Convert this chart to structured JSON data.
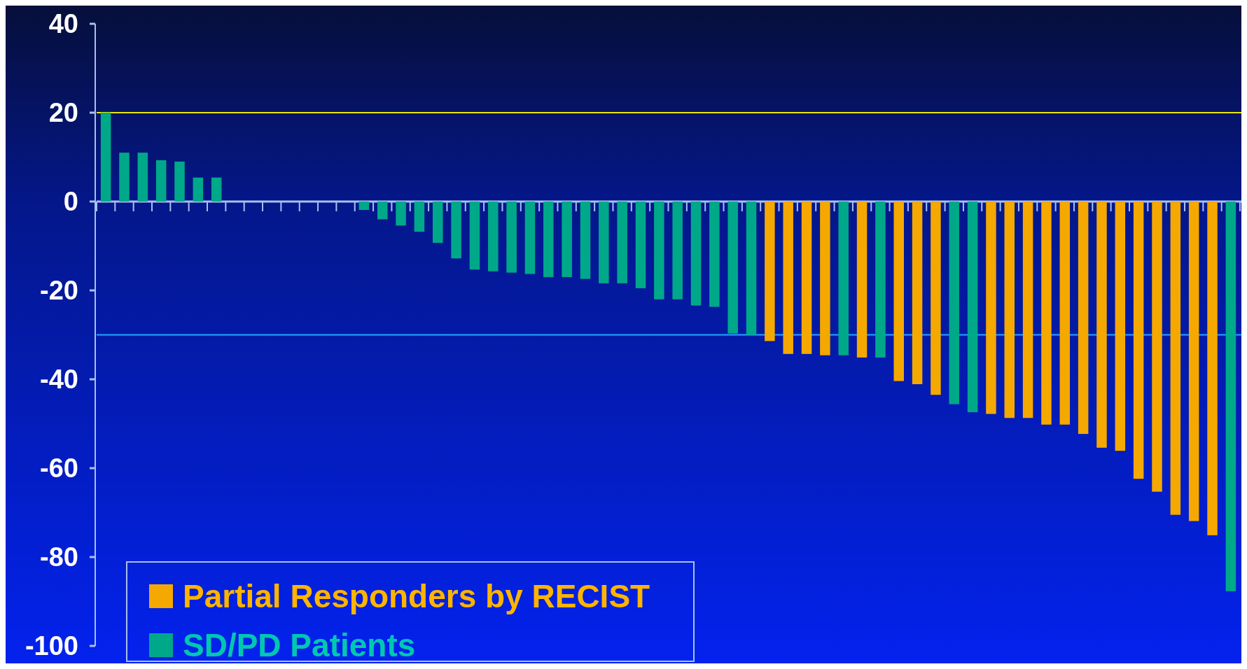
{
  "chart_data": {
    "type": "bar",
    "categories": [
      null,
      null,
      null,
      null,
      null,
      null,
      null,
      null,
      null,
      null,
      null,
      null,
      null,
      null,
      null,
      null,
      null,
      null,
      null,
      null,
      null,
      null,
      null,
      null,
      null,
      null,
      null,
      null,
      null,
      null,
      null,
      null,
      null,
      null,
      null,
      null,
      null,
      null,
      null,
      null,
      null,
      null,
      null,
      null,
      null,
      null,
      null,
      null,
      null,
      null,
      null,
      null,
      null,
      null,
      null,
      null,
      null,
      null,
      null,
      null,
      null,
      null
    ],
    "series": [
      {
        "name": "Partial Responders by RECIST",
        "color": "#f5a800",
        "values": [
          null,
          null,
          null,
          null,
          null,
          null,
          null,
          null,
          null,
          null,
          null,
          null,
          null,
          null,
          null,
          null,
          null,
          null,
          null,
          null,
          null,
          null,
          null,
          null,
          null,
          null,
          null,
          null,
          null,
          null,
          null,
          null,
          null,
          null,
          null,
          null,
          -31.4,
          -34.3,
          -34.3,
          -34.6,
          null,
          -35.1,
          null,
          -40.4,
          -41.1,
          -43.5,
          null,
          null,
          -47.8,
          -48.7,
          -48.7,
          -50.2,
          -50.2,
          -52.3,
          -55.4,
          -56.1,
          -62.4,
          -65.3,
          -70.5,
          -71.9,
          -75.1,
          null
        ]
      },
      {
        "name": "SD/PD Patients",
        "color": "#00a88a",
        "values": [
          20,
          11,
          11,
          9.3,
          9,
          5.4,
          5.4,
          null,
          null,
          null,
          null,
          null,
          null,
          null,
          -1.9,
          -4.0,
          -5.4,
          -6.8,
          -9.3,
          -12.8,
          -15.3,
          -15.7,
          -16.0,
          -16.3,
          -17.0,
          -17.0,
          -17.4,
          -18.4,
          -18.4,
          -19.5,
          -22.0,
          -22.0,
          -23.4,
          -23.7,
          -29.7,
          -30.0,
          null,
          null,
          null,
          null,
          -34.6,
          null,
          -35.1,
          null,
          null,
          null,
          -45.6,
          -47.4,
          null,
          null,
          null,
          null,
          null,
          null,
          null,
          null,
          null,
          null,
          null,
          null,
          null,
          -87.7
        ]
      }
    ],
    "ylim": [
      -100,
      40
    ],
    "yticks": [
      -100,
      -80,
      -60,
      -40,
      -20,
      0,
      20,
      40
    ],
    "ref_lines": [
      {
        "axis": "y",
        "value": 0,
        "color": "#a8c0f0"
      },
      {
        "axis": "y",
        "value": 20,
        "color": "#e8e800"
      },
      {
        "axis": "y",
        "value": -30,
        "color": "#22a8ff"
      }
    ],
    "legend": "bottom left",
    "grid": false
  }
}
